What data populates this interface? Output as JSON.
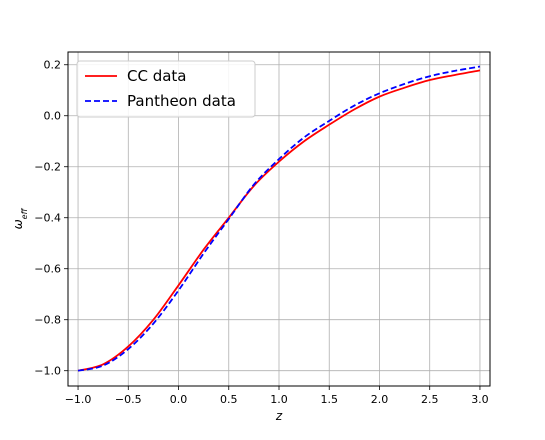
{
  "chart_data": {
    "type": "line",
    "title": "",
    "xlabel": "z",
    "ylabel": "ω_eff",
    "ylabel_parts": {
      "base": "ω",
      "sub": "eff"
    },
    "xlim": [
      -1.1,
      3.1
    ],
    "ylim": [
      -1.06,
      0.25
    ],
    "xticks": [
      -1.0,
      -0.5,
      0.0,
      0.5,
      1.0,
      1.5,
      2.0,
      2.5,
      3.0
    ],
    "xtick_labels": [
      "−1.0",
      "−0.5",
      "0.0",
      "0.5",
      "1.0",
      "1.5",
      "2.0",
      "2.5",
      "3.0"
    ],
    "yticks": [
      -1.0,
      -0.8,
      -0.6,
      -0.4,
      -0.2,
      0.0,
      0.2
    ],
    "ytick_labels": [
      "−1.0",
      "−0.8",
      "−0.6",
      "−0.4",
      "−0.2",
      "0.0",
      "0.2"
    ],
    "grid": true,
    "legend_position": "top-left",
    "series": [
      {
        "name": "CC data",
        "color": "#ff0000",
        "style": "solid",
        "x": [
          -1.0,
          -0.75,
          -0.5,
          -0.25,
          0.0,
          0.25,
          0.5,
          0.75,
          1.0,
          1.25,
          1.5,
          1.75,
          2.0,
          2.25,
          2.5,
          2.75,
          3.0
        ],
        "y": [
          -1.0,
          -0.975,
          -0.905,
          -0.8,
          -0.665,
          -0.525,
          -0.4,
          -0.275,
          -0.18,
          -0.1,
          -0.035,
          0.025,
          0.075,
          0.11,
          0.14,
          0.16,
          0.178
        ]
      },
      {
        "name": "Pantheon data",
        "color": "#0000ff",
        "style": "dashed",
        "x": [
          -1.0,
          -0.75,
          -0.5,
          -0.25,
          0.0,
          0.25,
          0.5,
          0.75,
          1.0,
          1.25,
          1.5,
          1.75,
          2.0,
          2.25,
          2.5,
          2.75,
          3.0
        ],
        "y": [
          -1.0,
          -0.98,
          -0.915,
          -0.815,
          -0.685,
          -0.54,
          -0.405,
          -0.27,
          -0.17,
          -0.085,
          -0.02,
          0.04,
          0.088,
          0.125,
          0.155,
          0.176,
          0.193
        ]
      }
    ]
  }
}
